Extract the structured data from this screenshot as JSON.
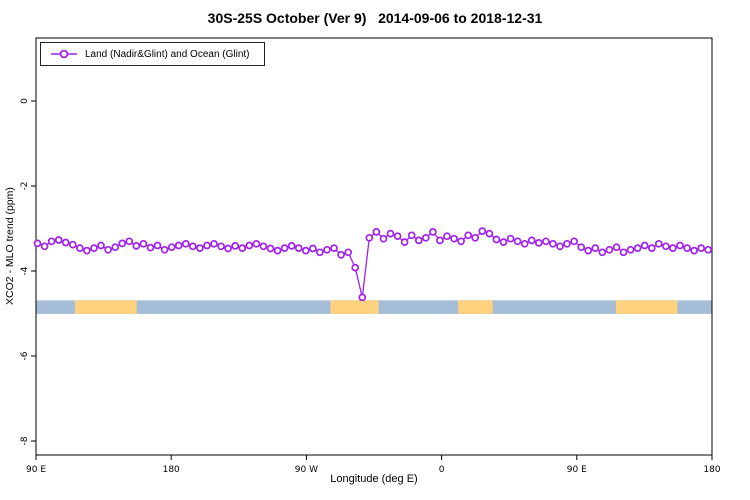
{
  "title": "30S-25S October (Ver 9)   2014-09-06 to 2018-12-31",
  "legend": {
    "label": "Land (Nadir&Glint) and Ocean (Glint)"
  },
  "axes": {
    "xlabel": "Longitude (deg E)",
    "ylabel": "XCO2 - MLO trend (ppm)"
  },
  "colors": {
    "accent": "#a020f0",
    "ocean_band": "#a6bdd8",
    "land_band": "#ffd27f",
    "axis": "#000000"
  },
  "chart_data": {
    "type": "line",
    "title": "30S-25S October (Ver 9)   2014-09-06 to 2018-12-31",
    "xlabel": "Longitude (deg E)",
    "ylabel": "XCO2 - MLO trend (ppm)",
    "legend_position": "top-left",
    "grid": false,
    "x_axis": {
      "range_deg": [
        0,
        450
      ],
      "tick_positions_deg": [
        0,
        90,
        180,
        270,
        360,
        450
      ],
      "tick_labels": [
        "90 E",
        "180",
        "90 W",
        "0",
        "90 E",
        "180"
      ],
      "note": "longitude axis wraps: 90E to 180 to 90W to 0 to 90E to 180"
    },
    "y_axis": {
      "ticks": [
        0,
        -2,
        -4,
        -6,
        -8
      ],
      "range": [
        -8.3,
        1.5
      ]
    },
    "surface_band": {
      "y_value": -4.85,
      "height_value": 0.32,
      "ocean_color": "#a6bdd8",
      "land_color": "#ffd27f",
      "land_segments_deg": [
        [
          26,
          67
        ],
        [
          196,
          228
        ],
        [
          281,
          304
        ],
        [
          386,
          427
        ]
      ]
    },
    "series": [
      {
        "name": "Land (Nadir&Glint) and Ocean (Glint)",
        "color": "#a020f0",
        "marker": "open-circle",
        "points": [
          [
            1.0,
            -3.35
          ],
          [
            5.7,
            -3.42
          ],
          [
            10.4,
            -3.3
          ],
          [
            15.1,
            -3.27
          ],
          [
            19.8,
            -3.33
          ],
          [
            24.5,
            -3.38
          ],
          [
            29.2,
            -3.46
          ],
          [
            33.9,
            -3.52
          ],
          [
            38.6,
            -3.46
          ],
          [
            43.3,
            -3.4
          ],
          [
            48.0,
            -3.5
          ],
          [
            52.7,
            -3.44
          ],
          [
            57.4,
            -3.35
          ],
          [
            62.1,
            -3.3
          ],
          [
            66.8,
            -3.41
          ],
          [
            71.5,
            -3.36
          ],
          [
            76.2,
            -3.45
          ],
          [
            80.9,
            -3.4
          ],
          [
            85.6,
            -3.5
          ],
          [
            90.3,
            -3.44
          ],
          [
            95.0,
            -3.4
          ],
          [
            99.7,
            -3.36
          ],
          [
            104.4,
            -3.42
          ],
          [
            109.1,
            -3.46
          ],
          [
            113.8,
            -3.4
          ],
          [
            118.5,
            -3.36
          ],
          [
            123.2,
            -3.42
          ],
          [
            127.9,
            -3.47
          ],
          [
            132.6,
            -3.41
          ],
          [
            137.3,
            -3.46
          ],
          [
            142.0,
            -3.4
          ],
          [
            146.7,
            -3.36
          ],
          [
            151.4,
            -3.42
          ],
          [
            156.1,
            -3.47
          ],
          [
            160.8,
            -3.52
          ],
          [
            165.5,
            -3.46
          ],
          [
            170.2,
            -3.41
          ],
          [
            174.9,
            -3.46
          ],
          [
            179.6,
            -3.52
          ],
          [
            184.3,
            -3.47
          ],
          [
            189.0,
            -3.56
          ],
          [
            193.7,
            -3.5
          ],
          [
            198.4,
            -3.46
          ],
          [
            203.1,
            -3.62
          ],
          [
            207.8,
            -3.56
          ],
          [
            212.5,
            -3.92
          ],
          [
            217.2,
            -4.62
          ],
          [
            221.9,
            -3.22
          ],
          [
            226.6,
            -3.08
          ],
          [
            231.3,
            -3.24
          ],
          [
            236.0,
            -3.12
          ],
          [
            240.7,
            -3.18
          ],
          [
            245.4,
            -3.32
          ],
          [
            250.1,
            -3.16
          ],
          [
            254.8,
            -3.28
          ],
          [
            259.5,
            -3.22
          ],
          [
            264.2,
            -3.08
          ],
          [
            268.9,
            -3.28
          ],
          [
            273.6,
            -3.18
          ],
          [
            278.3,
            -3.24
          ],
          [
            283.0,
            -3.3
          ],
          [
            287.7,
            -3.16
          ],
          [
            292.4,
            -3.22
          ],
          [
            297.1,
            -3.06
          ],
          [
            301.8,
            -3.12
          ],
          [
            306.5,
            -3.26
          ],
          [
            311.2,
            -3.32
          ],
          [
            315.9,
            -3.24
          ],
          [
            320.6,
            -3.3
          ],
          [
            325.3,
            -3.36
          ],
          [
            330.0,
            -3.28
          ],
          [
            334.7,
            -3.34
          ],
          [
            339.4,
            -3.3
          ],
          [
            344.1,
            -3.36
          ],
          [
            348.8,
            -3.42
          ],
          [
            353.5,
            -3.36
          ],
          [
            358.2,
            -3.3
          ],
          [
            362.9,
            -3.44
          ],
          [
            367.6,
            -3.52
          ],
          [
            372.3,
            -3.46
          ],
          [
            377.0,
            -3.56
          ],
          [
            381.7,
            -3.5
          ],
          [
            386.4,
            -3.44
          ],
          [
            391.1,
            -3.56
          ],
          [
            395.8,
            -3.5
          ],
          [
            400.5,
            -3.46
          ],
          [
            405.2,
            -3.4
          ],
          [
            409.9,
            -3.46
          ],
          [
            414.6,
            -3.36
          ],
          [
            419.3,
            -3.42
          ],
          [
            424.0,
            -3.46
          ],
          [
            428.7,
            -3.4
          ],
          [
            433.4,
            -3.46
          ],
          [
            438.1,
            -3.52
          ],
          [
            442.8,
            -3.46
          ],
          [
            447.5,
            -3.5
          ]
        ]
      }
    ]
  }
}
